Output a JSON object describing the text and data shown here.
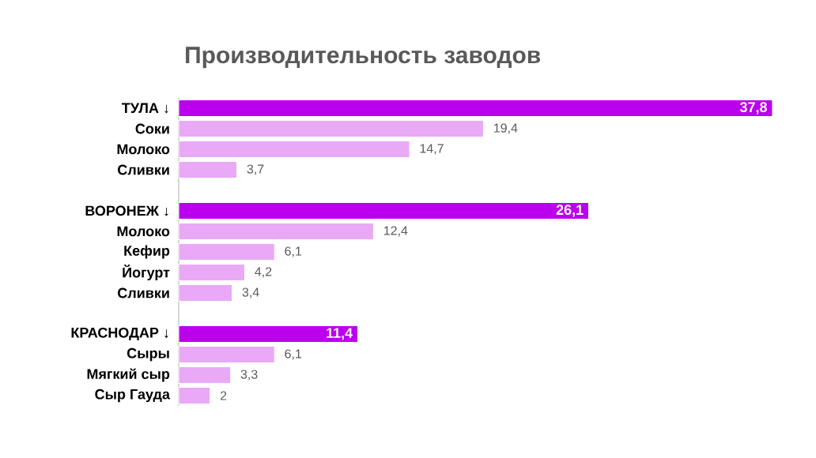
{
  "chart_data": {
    "type": "bar",
    "orientation": "horizontal",
    "title": "Производительность заводов",
    "categories": [
      "ТУЛА ↓",
      "Соки",
      "Молоко",
      "Сливки",
      null,
      "ВОРОНЕЖ ↓",
      "Молоко",
      "Кефир",
      "Йогурт",
      "Сливки",
      null,
      "КРАСНОДАР ↓",
      "Сыры",
      "Мягкий сыр",
      "Сыр Гауда"
    ],
    "values": [
      37.8,
      19.4,
      14.7,
      3.7,
      null,
      26.1,
      12.4,
      6.1,
      4.2,
      3.4,
      null,
      11.4,
      6.1,
      3.3,
      2
    ],
    "value_labels": [
      "37,8",
      "19,4",
      "14,7",
      "3,7",
      null,
      "26,1",
      "12,4",
      "6,1",
      "4,2",
      "3,4",
      null,
      "11,4",
      "6,1",
      "3,3",
      "2"
    ],
    "colors": [
      "#bb00ee",
      "#e9a9f7",
      "#e9a9f7",
      "#e9a9f7",
      null,
      "#bb00ee",
      "#e9a9f7",
      "#e9a9f7",
      "#e9a9f7",
      "#e9a9f7",
      null,
      "#bb00ee",
      "#e9a9f7",
      "#e9a9f7",
      "#e9a9f7"
    ]
  }
}
